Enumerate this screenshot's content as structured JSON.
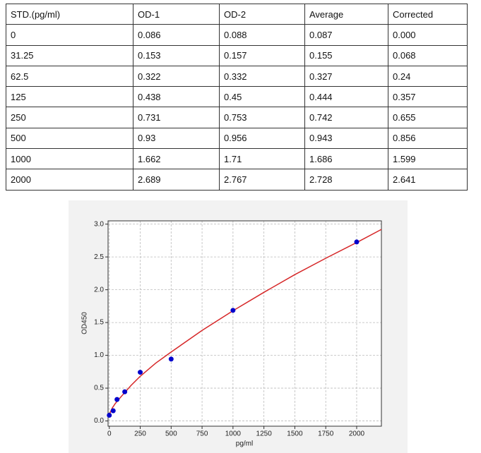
{
  "table": {
    "header": [
      "STD.(pg/ml)",
      "OD-1",
      "OD-2",
      "Average",
      "Corrected"
    ],
    "rows": [
      [
        "0",
        "0.086",
        "0.088",
        "0.087",
        "0.000"
      ],
      [
        "31.25",
        "0.153",
        "0.157",
        "0.155",
        "0.068"
      ],
      [
        "62.5",
        "0.322",
        "0.332",
        "0.327",
        "0.24"
      ],
      [
        "125",
        "0.438",
        "0.45",
        "0.444",
        "0.357"
      ],
      [
        "250",
        "0.731",
        "0.753",
        "0.742",
        "0.655"
      ],
      [
        "500",
        "0.93",
        "0.956",
        "0.943",
        "0.856"
      ],
      [
        "1000",
        "1.662",
        "1.71",
        "1.686",
        "1.599"
      ],
      [
        "2000",
        "2.689",
        "2.767",
        "2.728",
        "2.641"
      ]
    ]
  },
  "chart_data": {
    "type": "scatter",
    "x_label": "pg/ml",
    "y_label": "OD450",
    "xlim": [
      -10,
      2200
    ],
    "ylim": [
      -0.08,
      3.05
    ],
    "xticks": [
      0,
      250,
      500,
      750,
      1000,
      1250,
      1500,
      1750,
      2000
    ],
    "yticks": [
      {
        "value": 0,
        "label": "0.0"
      },
      {
        "value": 0.5,
        "label": "0.5"
      },
      {
        "value": 1,
        "label": "1.0"
      },
      {
        "value": 1.5,
        "label": "1.5"
      },
      {
        "value": 2,
        "label": "2.0"
      },
      {
        "value": 2.5,
        "label": "2.5"
      },
      {
        "value": 3,
        "label": "3.0"
      }
    ],
    "grid": true,
    "series": [
      {
        "type": "scatter",
        "color": "#0000cc",
        "x": [
          0,
          31.25,
          62.5,
          125,
          250,
          500,
          1000,
          2000
        ],
        "values": [
          0.087,
          0.155,
          0.327,
          0.444,
          0.742,
          0.943,
          1.686,
          2.728
        ]
      },
      {
        "type": "line",
        "color": "#d62728",
        "x": [
          0,
          25,
          50,
          100,
          175,
          250,
          375,
          500,
          750,
          1000,
          1250,
          1500,
          1750,
          2000,
          2200
        ],
        "values": [
          0.1,
          0.2,
          0.27,
          0.38,
          0.54,
          0.68,
          0.88,
          1.05,
          1.38,
          1.68,
          1.96,
          2.23,
          2.48,
          2.72,
          2.92
        ]
      }
    ]
  }
}
